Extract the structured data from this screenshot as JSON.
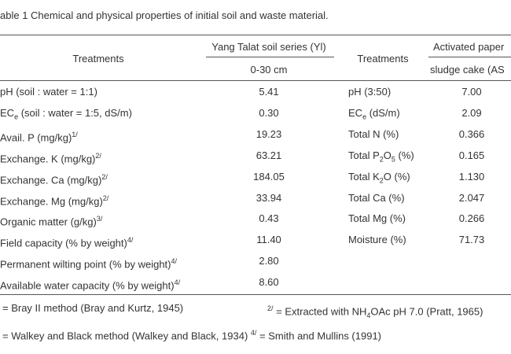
{
  "title": "able 1 Chemical and physical properties of initial soil and waste material.",
  "header": {
    "treatments_left": "Treatments",
    "soil_series": "Yang Talat soil series (Yl)",
    "depth": "0-30 cm",
    "treatments_right": "Treatments",
    "waste_line1": "Activated paper",
    "waste_line2": "sludge cake (AS"
  },
  "table": {
    "rows": [
      [
        "pH (soil : water = 1:1)",
        "5.41",
        "pH (3:50)",
        "7.00"
      ],
      [
        [
          "EC",
          {
            "sub": "e"
          },
          " (soil : water = 1:5, dS/m)"
        ],
        "0.30",
        [
          "EC",
          {
            "sub": "e"
          },
          " (dS/m)"
        ],
        "2.09"
      ],
      [
        [
          "Avail. P (mg/kg)",
          {
            "sup": "1/"
          }
        ],
        "19.23",
        "Total N (%)",
        "0.366"
      ],
      [
        [
          "Exchange. K (mg/kg)",
          {
            "sup": "2/"
          }
        ],
        "63.21",
        [
          "Total P",
          {
            "sub": "2"
          },
          "O",
          {
            "sub": "5"
          },
          " (%)"
        ],
        "0.165"
      ],
      [
        [
          "Exchange. Ca (mg/kg)",
          {
            "sup": "2/"
          }
        ],
        "184.05",
        [
          "Total K",
          {
            "sub": "2"
          },
          "O (%)"
        ],
        "1.130"
      ],
      [
        [
          "Exchange. Mg (mg/kg)",
          {
            "sup": "2/"
          }
        ],
        "33.94",
        "Total Ca (%)",
        "2.047"
      ],
      [
        [
          "Organic matter (g/kg)",
          {
            "sup": "3/"
          }
        ],
        "0.43",
        "Total Mg (%)",
        "0.266"
      ],
      [
        [
          "Field capacity (% by weight)",
          {
            "sup": "4/"
          }
        ],
        "11.40",
        "Moisture (%)",
        "71.73"
      ],
      [
        [
          "Permanent wilting point (% by weight)",
          {
            "sup": "4/"
          }
        ],
        "2.80"
      ],
      [
        [
          "Available water capacity (% by weight)",
          {
            "sup": "4/"
          }
        ],
        "8.60"
      ]
    ]
  },
  "footnotes": [
    "= Bray II method (Bray and Kurtz, 1945)",
    [
      {
        "sup": "2/"
      },
      " = Extracted with NH",
      {
        "sub": "4"
      },
      "OAc pH 7.0 (Pratt, 1965)"
    ],
    [
      "= Walkey and Black method (Walkey and Black, 1934) ",
      {
        "sup": "4/"
      },
      " = Smith and Mullins (1991)"
    ]
  ]
}
